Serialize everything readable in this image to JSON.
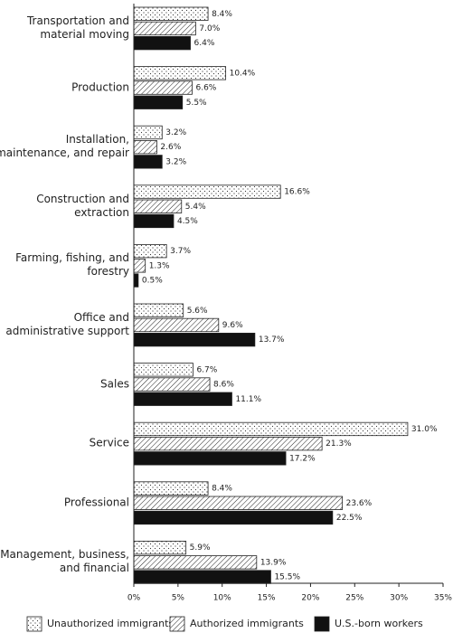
{
  "chart_data": {
    "type": "hbar",
    "categories": [
      "Transportation and material moving",
      "Production",
      "Installation, maintenance, and repair",
      "Construction and extraction",
      "Farming, fishing, and forestry",
      "Office and administrative support",
      "Sales",
      "Service",
      "Professional",
      "Management, business, and financial"
    ],
    "series": [
      {
        "name": "Unauthorized immigrants",
        "color": "#ffffff",
        "pattern": "dots",
        "values": [
          8.4,
          10.4,
          3.2,
          16.6,
          3.7,
          5.6,
          6.7,
          31.0,
          8.4,
          5.9
        ],
        "value_labels": [
          "8.4%",
          "10.4%",
          "3.2%",
          "16.6%",
          "3.7%",
          "5.6%",
          "6.7%",
          "31.0%",
          "8.4%",
          "5.9%"
        ]
      },
      {
        "name": "Authorized immigrants",
        "color": "#ffffff",
        "pattern": "hatch",
        "values": [
          7.0,
          6.6,
          2.6,
          5.4,
          1.3,
          9.6,
          8.6,
          21.3,
          23.6,
          13.9
        ],
        "value_labels": [
          "7.0%",
          "6.6%",
          "2.6%",
          "5.4%",
          "1.3%",
          "9.6%",
          "8.6%",
          "21.3%",
          "23.6%",
          "13.9%"
        ]
      },
      {
        "name": "U.S.-born workers",
        "color": "#111111",
        "pattern": "solid",
        "values": [
          6.4,
          5.5,
          3.2,
          4.5,
          0.5,
          13.7,
          11.1,
          17.2,
          22.5,
          15.5
        ],
        "value_labels": [
          "6.4%",
          "5.5%",
          "3.2%",
          "4.5%",
          "0.5%",
          "13.7%",
          "11.1%",
          "17.2%",
          "22.5%",
          "15.5%"
        ]
      }
    ],
    "xlim": [
      0,
      35
    ],
    "xticks": [
      {
        "value": 0,
        "label": "0%"
      },
      {
        "value": 5,
        "label": "5%"
      },
      {
        "value": 10,
        "label": "10%"
      },
      {
        "value": 15,
        "label": "15%"
      },
      {
        "value": 20,
        "label": "20%"
      },
      {
        "value": 25,
        "label": "25%"
      },
      {
        "value": 30,
        "label": "30%"
      },
      {
        "value": 35,
        "label": "35%"
      }
    ],
    "legend": "bottom"
  }
}
